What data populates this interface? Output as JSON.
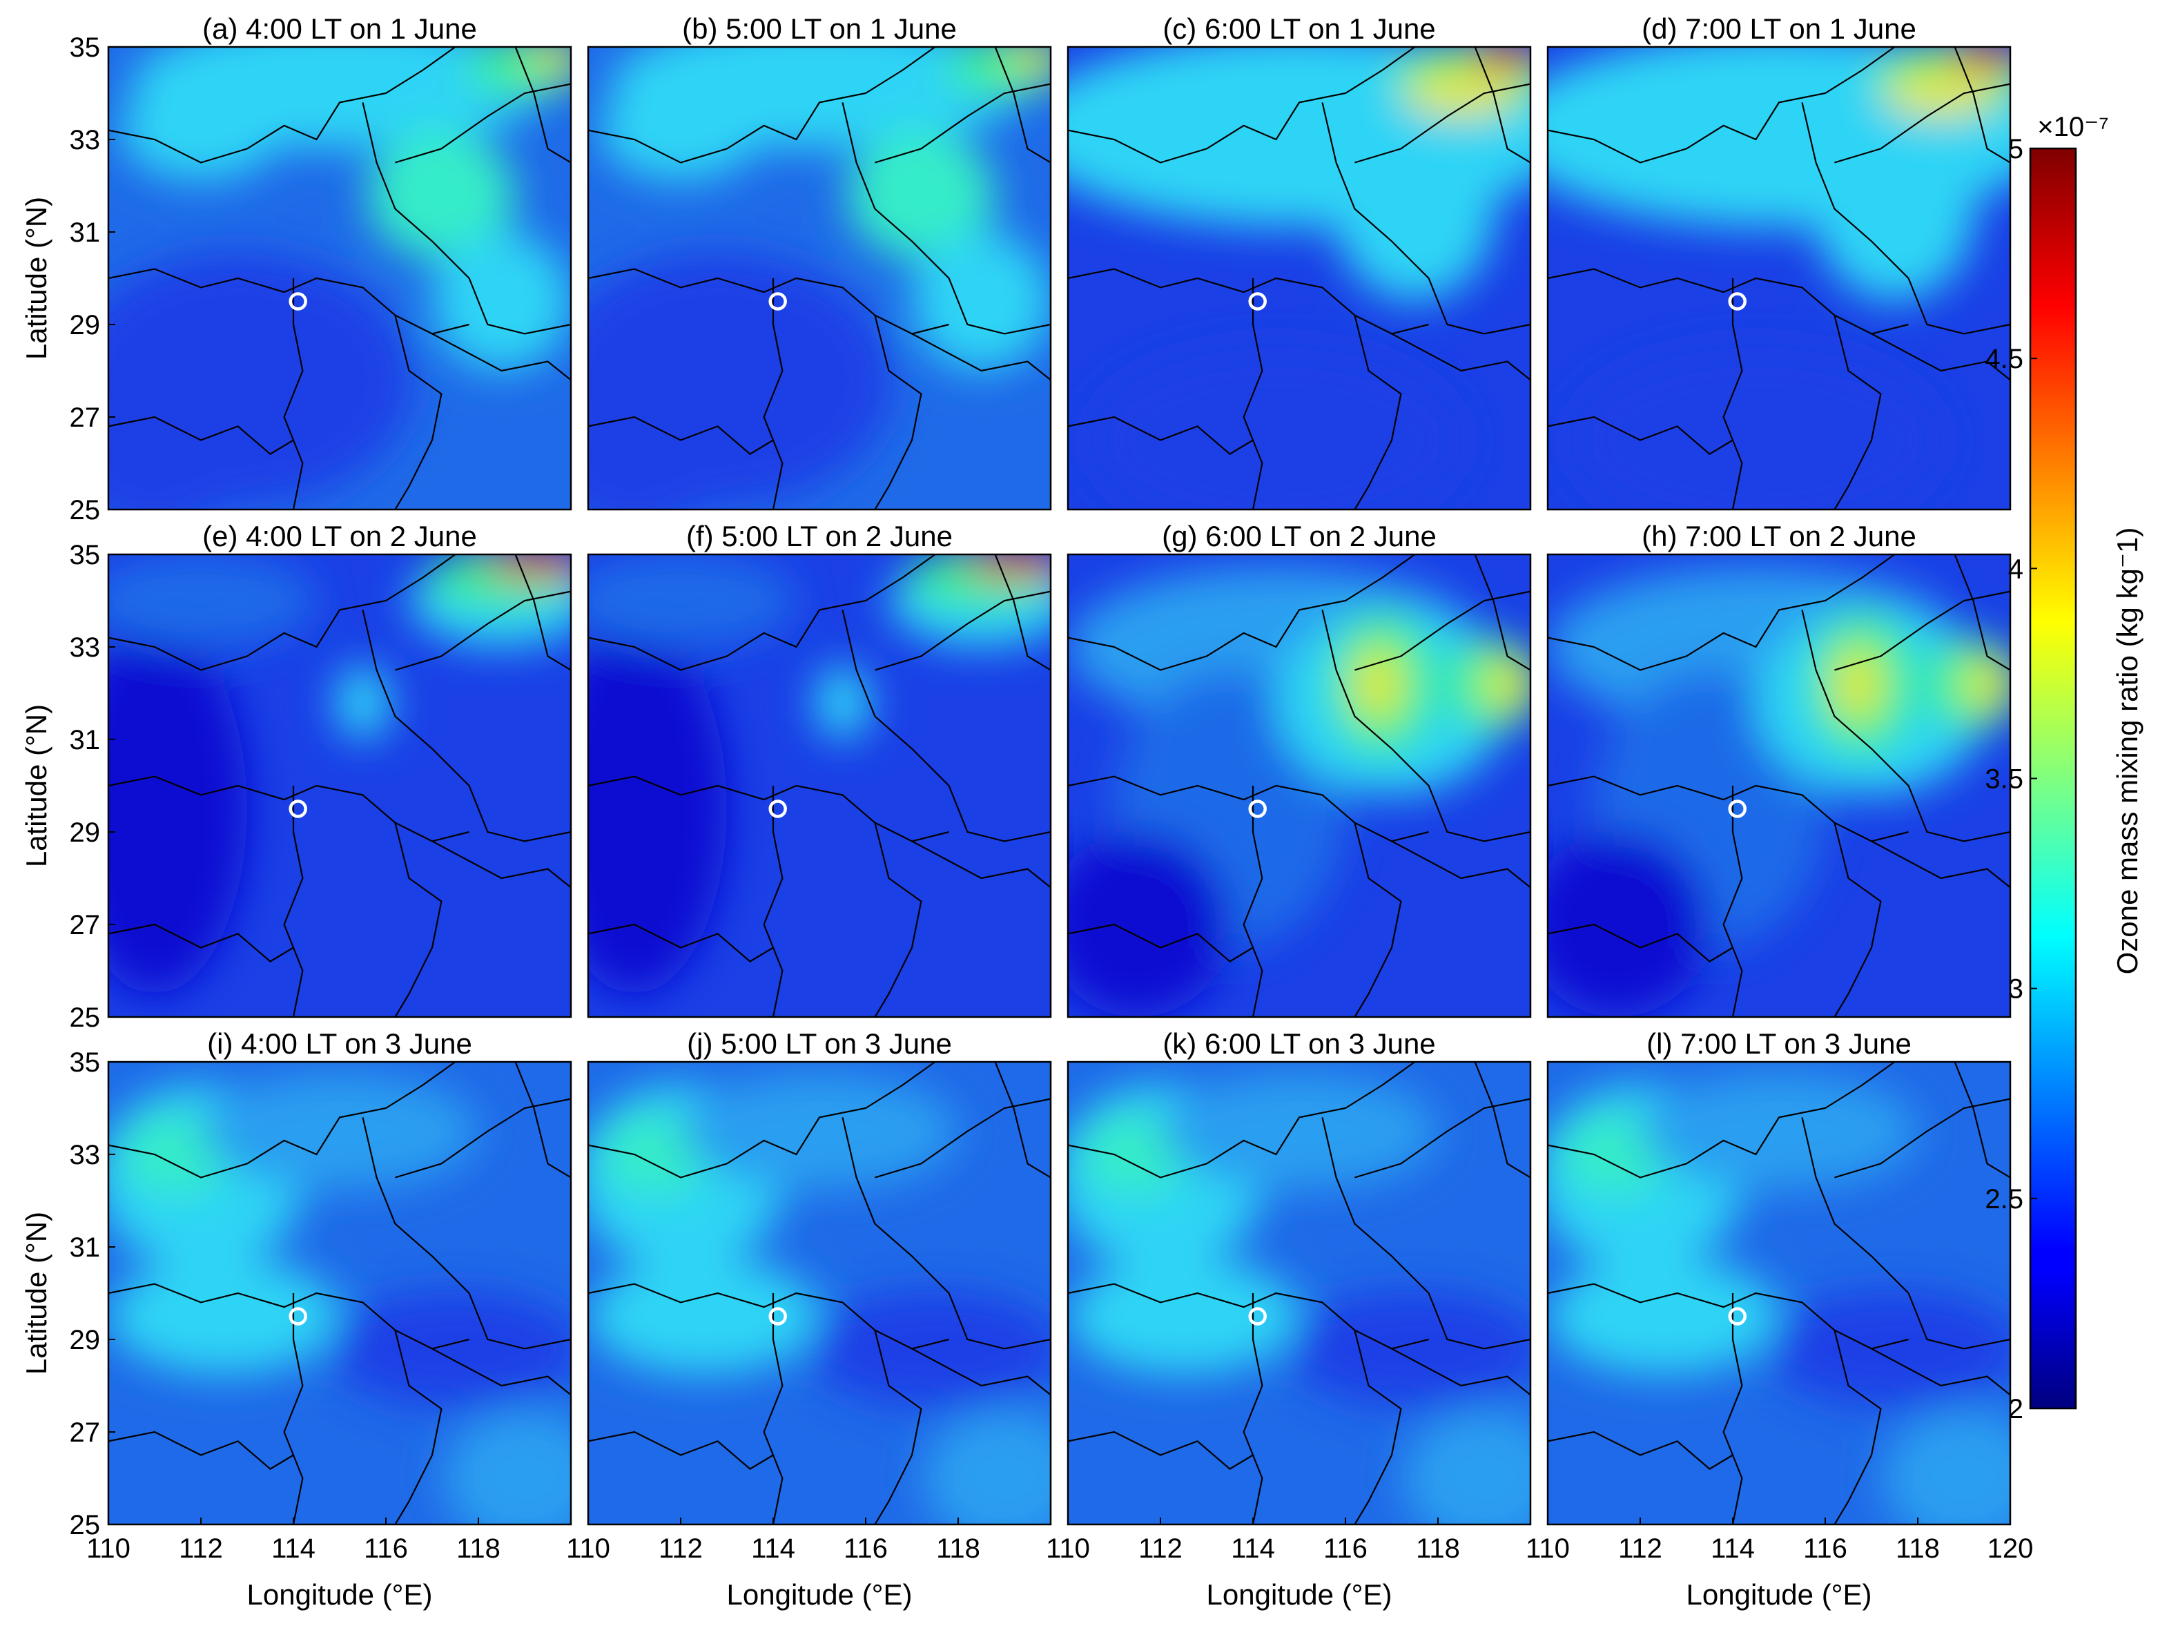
{
  "chart_data": {
    "type": "heatmap",
    "layout": "3x4 small multiples",
    "xlabel": "Longitude (°E)",
    "ylabel": "Latitude (°N)",
    "xlim": [
      110,
      120
    ],
    "ylim": [
      25,
      35
    ],
    "x_ticks": [
      "110",
      "112",
      "114",
      "116",
      "118"
    ],
    "x_ticks_last_panel": [
      "110",
      "112",
      "114",
      "116",
      "118",
      "120"
    ],
    "y_ticks": [
      "25",
      "27",
      "29",
      "31",
      "33",
      "35"
    ],
    "marker": {
      "label": "site",
      "lon": 114.1,
      "lat": 29.5,
      "shape": "open circle"
    },
    "panels": [
      {
        "id": "a",
        "title": "(a) 4:00 LT on 1 June"
      },
      {
        "id": "b",
        "title": "(b) 5:00 LT on 1 June"
      },
      {
        "id": "c",
        "title": "(c) 6:00 LT on 1 June"
      },
      {
        "id": "d",
        "title": "(d) 7:00 LT on 1 June"
      },
      {
        "id": "e",
        "title": "(e) 4:00 LT on 2 June"
      },
      {
        "id": "f",
        "title": "(f) 5:00 LT on 2 June"
      },
      {
        "id": "g",
        "title": "(g) 6:00 LT on 2 June"
      },
      {
        "id": "h",
        "title": "(h) 7:00 LT on 2 June"
      },
      {
        "id": "i",
        "title": "(i) 4:00 LT on 3 June"
      },
      {
        "id": "j",
        "title": "(j) 5:00 LT on 3 June"
      },
      {
        "id": "k",
        "title": "(k) 6:00 LT on 3 June"
      },
      {
        "id": "l",
        "title": "(l) 7:00 LT on 3 June"
      }
    ],
    "colorbar": {
      "label": "Ozone mass mixing ratio (kg kg⁻1)",
      "exponent": "×10⁻⁷",
      "range": [
        2,
        5
      ],
      "ticks": [
        "2",
        "2.5",
        "3",
        "3.5",
        "4",
        "4.5",
        "5"
      ],
      "colormap": "jet"
    }
  }
}
